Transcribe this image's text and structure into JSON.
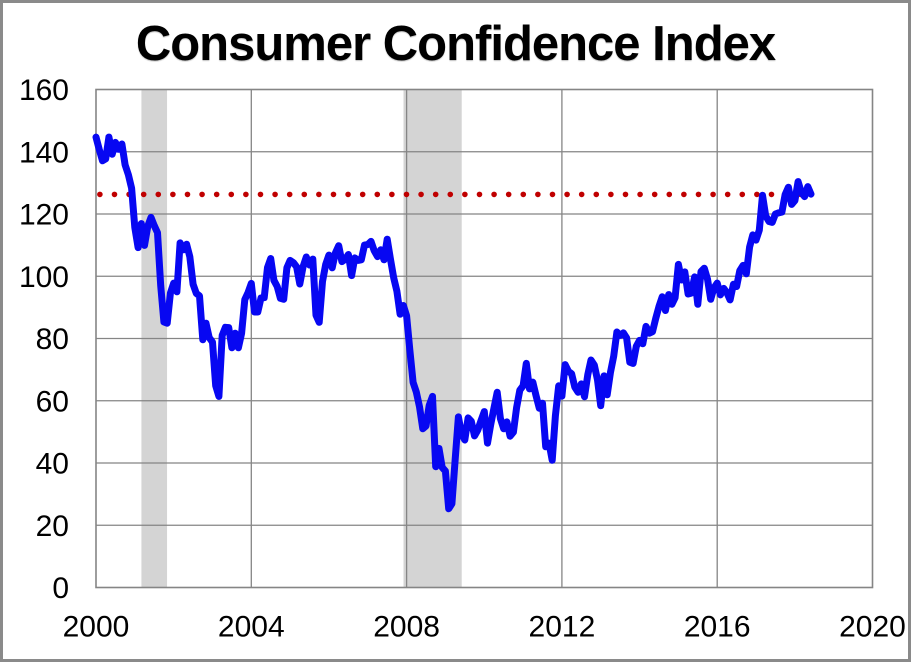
{
  "window": {
    "background": "#FFFFFF",
    "frame_border_color": "#8A8A8A",
    "text_color": "#000000"
  },
  "chart_data": {
    "type": "line",
    "title": "Consumer Confidence Index",
    "xlabel": "",
    "ylabel": "",
    "xlim": [
      2000,
      2020
    ],
    "ylim": [
      0,
      160
    ],
    "xticks": [
      2000,
      2004,
      2008,
      2012,
      2016,
      2020
    ],
    "yticks": [
      0,
      20,
      40,
      60,
      80,
      100,
      120,
      140,
      160
    ],
    "grid": true,
    "grid_color": "#858585",
    "axis_color": "#858585",
    "band_color": "#D4D4D4",
    "recession_bands": [
      {
        "start": 2001.17,
        "end": 2001.83
      },
      {
        "start": 2007.92,
        "end": 2009.42
      }
    ],
    "reference_line": {
      "value": 126.3,
      "color": "#C00000",
      "style": "dotted",
      "x_start": 2000.1,
      "x_end": 2018.25
    },
    "series": [
      {
        "name": "Consumer Confidence Index",
        "color": "#0707F2",
        "frequency": "monthly",
        "start_year": 2000,
        "values": [
          144.7,
          140.8,
          137.1,
          137.7,
          144.7,
          139.2,
          143.0,
          140.8,
          142.5,
          135.8,
          132.6,
          128.3,
          115.7,
          109.2,
          116.9,
          109.9,
          116.1,
          118.9,
          116.3,
          114.0,
          97.0,
          85.3,
          84.9,
          94.6,
          97.8,
          95.0,
          110.7,
          108.5,
          110.3,
          106.3,
          97.4,
          94.5,
          93.7,
          79.6,
          84.9,
          80.3,
          78.8,
          64.8,
          61.4,
          81.0,
          83.6,
          83.5,
          77.0,
          81.7,
          77.0,
          81.7,
          92.5,
          94.8,
          97.7,
          88.5,
          88.5,
          93.0,
          93.1,
          102.8,
          105.7,
          98.7,
          96.7,
          92.9,
          92.6,
          102.7,
          105.1,
          104.4,
          103.0,
          97.5,
          103.1,
          106.2,
          103.6,
          105.5,
          87.5,
          85.2,
          98.3,
          103.8,
          106.8,
          102.7,
          107.5,
          109.8,
          104.7,
          105.4,
          107.0,
          100.2,
          105.9,
          105.1,
          105.3,
          110.0,
          110.2,
          111.2,
          108.2,
          106.3,
          108.5,
          105.3,
          111.9,
          105.6,
          99.5,
          95.2,
          87.8,
          90.6,
          87.3,
          76.4,
          65.9,
          62.8,
          58.1,
          51.0,
          51.9,
          58.5,
          61.4,
          38.8,
          44.7,
          38.6,
          37.4,
          25.3,
          26.9,
          40.8,
          54.8,
          49.3,
          47.4,
          54.5,
          53.4,
          48.7,
          50.6,
          53.6,
          56.5,
          46.4,
          52.3,
          57.7,
          62.7,
          54.3,
          51.0,
          53.2,
          48.6,
          49.9,
          57.8,
          63.4,
          64.8,
          72.0,
          63.8,
          66.0,
          61.7,
          57.6,
          59.2,
          45.2,
          46.4,
          40.9,
          55.2,
          64.8,
          61.5,
          71.6,
          69.5,
          68.7,
          64.4,
          62.7,
          65.4,
          61.3,
          68.4,
          73.1,
          71.5,
          66.7,
          58.4,
          68.0,
          61.9,
          69.0,
          74.3,
          82.1,
          81.0,
          81.8,
          80.2,
          72.4,
          72.0,
          77.5,
          79.4,
          78.3,
          83.9,
          81.7,
          82.2,
          86.4,
          90.3,
          93.4,
          89.0,
          94.1,
          91.0,
          93.1,
          103.8,
          98.8,
          101.4,
          94.3,
          94.6,
          99.8,
          91.0,
          101.5,
          102.6,
          99.1,
          92.6,
          96.3,
          97.8,
          94.0,
          96.1,
          94.7,
          92.4,
          97.4,
          96.7,
          101.8,
          103.5,
          100.8,
          109.4,
          113.3,
          111.6,
          114.8,
          126.0,
          119.4,
          117.6,
          117.3,
          120.0,
          120.4,
          120.6,
          126.2,
          128.6,
          123.1,
          124.3,
          130.4,
          127.0,
          125.6,
          128.8,
          126.4
        ]
      }
    ]
  }
}
